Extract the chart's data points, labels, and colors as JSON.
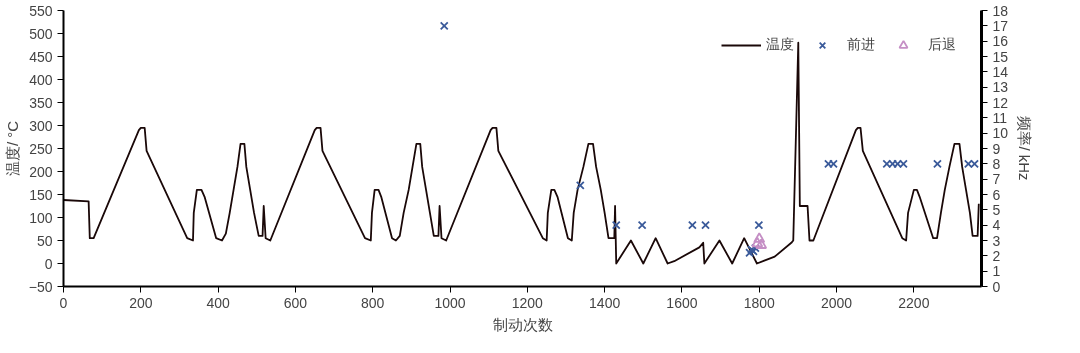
{
  "chart_data": {
    "type": "line",
    "xlabel": "制动次数",
    "ylabel": "温度/ °C",
    "y2label": "频率/ kHz",
    "xlim": [
      0,
      2375
    ],
    "xticks": [
      0,
      200,
      400,
      600,
      800,
      1000,
      1200,
      1400,
      1600,
      1800,
      2000,
      2200
    ],
    "ylim": [
      -50,
      550
    ],
    "yticks": [
      -50,
      0,
      50,
      100,
      150,
      200,
      250,
      300,
      350,
      400,
      450,
      500,
      550
    ],
    "y2lim": [
      0,
      18
    ],
    "y2ticks": [
      0,
      1,
      2,
      3,
      4,
      5,
      6,
      7,
      8,
      9,
      10,
      11,
      12,
      13,
      14,
      15,
      16,
      17,
      18
    ],
    "grid": false,
    "legend": "top right",
    "series": [
      {
        "name": "温度",
        "color": "#1a0808",
        "line_style": "solid",
        "marker": "none",
        "x": [
          0,
          65,
          68,
          78,
          195,
          200,
          210,
          215,
          320,
          335,
          337,
          345,
          357,
          365,
          395,
          410,
          420,
          430,
          440,
          450,
          458,
          468,
          473,
          483,
          493,
          505,
          515,
          518,
          523,
          535,
          650,
          655,
          665,
          670,
          780,
          795,
          798,
          805,
          815,
          822,
          850,
          860,
          870,
          880,
          893,
          903,
          913,
          923,
          928,
          938,
          948,
          958,
          970,
          973,
          978,
          990,
          1105,
          1110,
          1120,
          1125,
          1240,
          1250,
          1253,
          1262,
          1270,
          1278,
          1305,
          1315,
          1320,
          1330,
          1345,
          1358,
          1370,
          1378,
          1390,
          1400,
          1410,
          1425,
          1427,
          1430,
          1468,
          1500,
          1532,
          1563,
          1580,
          1645,
          1655,
          1658,
          1697,
          1730,
          1761,
          1794,
          1840,
          1883,
          1888,
          1901,
          1905,
          1925,
          1930,
          1940,
          2050,
          2055,
          2062,
          2068,
          2170,
          2180,
          2185,
          2200,
          2208,
          2215,
          2250,
          2260,
          2270,
          2280,
          2292,
          2305,
          2318,
          2325,
          2335,
          2345,
          2352,
          2365,
          2368
        ],
        "values": [
          138,
          135,
          55,
          55,
          290,
          295,
          295,
          245,
          55,
          50,
          110,
          160,
          160,
          145,
          55,
          50,
          65,
          110,
          160,
          210,
          260,
          260,
          210,
          160,
          110,
          60,
          60,
          125,
          55,
          50,
          290,
          295,
          295,
          245,
          55,
          50,
          110,
          160,
          160,
          145,
          55,
          50,
          60,
          110,
          160,
          210,
          260,
          260,
          210,
          160,
          110,
          60,
          60,
          125,
          55,
          50,
          290,
          295,
          295,
          245,
          55,
          50,
          110,
          160,
          160,
          145,
          55,
          50,
          110,
          160,
          210,
          260,
          260,
          210,
          160,
          110,
          55,
          55,
          125,
          0,
          50,
          0,
          55,
          0,
          5,
          35,
          45,
          0,
          50,
          0,
          55,
          0,
          15,
          45,
          50,
          480,
          125,
          125,
          50,
          50,
          290,
          295,
          295,
          245,
          55,
          50,
          110,
          160,
          160,
          145,
          55,
          55,
          110,
          160,
          210,
          260,
          260,
          210,
          160,
          110,
          60,
          60,
          130
        ]
      },
      {
        "name": "前进",
        "type": "scatter",
        "axis": "y2",
        "color": "#3a5a9a",
        "marker": "cross",
        "x": [
          985,
          1337,
          1430,
          1497,
          1627,
          1661,
          1799,
          1775,
          1780,
          1785,
          1790,
          1979,
          1992,
          2130,
          2145,
          2158,
          2173,
          2261,
          2341,
          2357
        ],
        "values": [
          17,
          6.6,
          4,
          4,
          4,
          4,
          4,
          2.2,
          2.4,
          2.3,
          2.5,
          8,
          8,
          8,
          8,
          8,
          8,
          8,
          8,
          8
        ]
      },
      {
        "name": "后退",
        "type": "scatter",
        "axis": "y2",
        "color": "#c58fc5",
        "marker": "triangle",
        "x": [
          1795,
          1800,
          1805
        ],
        "values": [
          2.8,
          3.1,
          2.7
        ]
      }
    ]
  }
}
